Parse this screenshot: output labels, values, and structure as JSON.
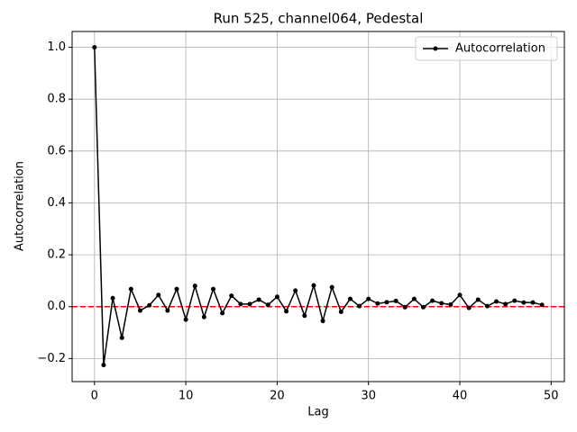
{
  "chart_data": {
    "type": "line",
    "title": "Run 525, channel064, Pedestal",
    "xlabel": "Lag",
    "ylabel": "Autocorrelation",
    "x": [
      0,
      1,
      2,
      3,
      4,
      5,
      6,
      7,
      8,
      9,
      10,
      11,
      12,
      13,
      14,
      15,
      16,
      17,
      18,
      19,
      20,
      21,
      22,
      23,
      24,
      25,
      26,
      27,
      28,
      29,
      30,
      31,
      32,
      33,
      34,
      35,
      36,
      37,
      38,
      39,
      40,
      41,
      42,
      43,
      44,
      45,
      46,
      47,
      48,
      49
    ],
    "series": [
      {
        "name": "Autocorrelation",
        "color": "#000000",
        "values": [
          1.0,
          -0.225,
          0.033,
          -0.12,
          0.068,
          -0.015,
          0.005,
          0.045,
          -0.015,
          0.068,
          -0.05,
          0.08,
          -0.04,
          0.068,
          -0.025,
          0.042,
          0.01,
          0.01,
          0.027,
          0.007,
          0.038,
          -0.018,
          0.062,
          -0.035,
          0.082,
          -0.055,
          0.075,
          -0.02,
          0.03,
          0.002,
          0.03,
          0.012,
          0.017,
          0.022,
          -0.002,
          0.03,
          -0.002,
          0.023,
          0.013,
          0.008,
          0.045,
          -0.005,
          0.027,
          0.002,
          0.02,
          0.01,
          0.023,
          0.016,
          0.016,
          0.007
        ]
      }
    ],
    "hline": {
      "value": 0,
      "color": "#ff0000"
    },
    "xlim": [
      -2.45,
      51.45
    ],
    "ylim": [
      -0.289,
      1.061
    ],
    "xticks": [
      0,
      10,
      20,
      30,
      40,
      50
    ],
    "yticks": [
      {
        "value": -0.2,
        "label": "−0.2"
      },
      {
        "value": 0,
        "label": "0.0"
      },
      0.2,
      0.4,
      0.6,
      0.8,
      {
        "value": 1.0,
        "label": "1.0"
      }
    ],
    "grid": true,
    "legend": "upper right"
  }
}
